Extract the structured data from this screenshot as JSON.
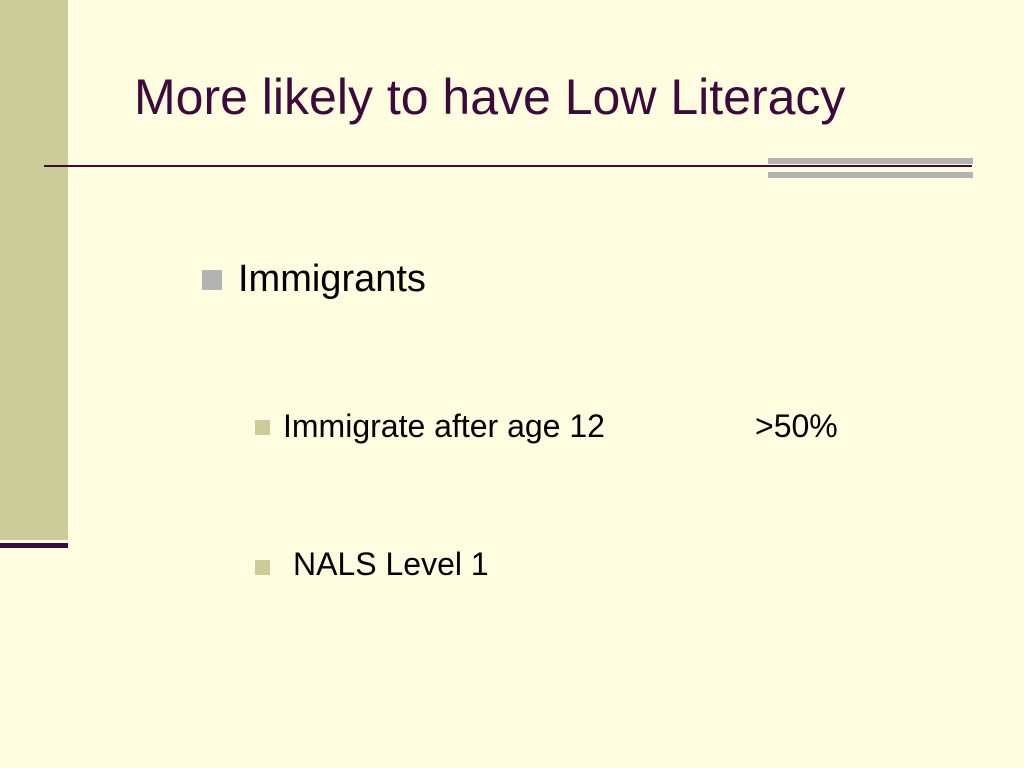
{
  "slide": {
    "title": "More likely to have Low Literacy",
    "bullets": [
      {
        "text": "Immigrants",
        "level": 1
      },
      {
        "text": "Immigrate after age 12",
        "value": ">50%",
        "level": 2
      },
      {
        "text": "NALS Level 1",
        "level": 2
      }
    ]
  }
}
